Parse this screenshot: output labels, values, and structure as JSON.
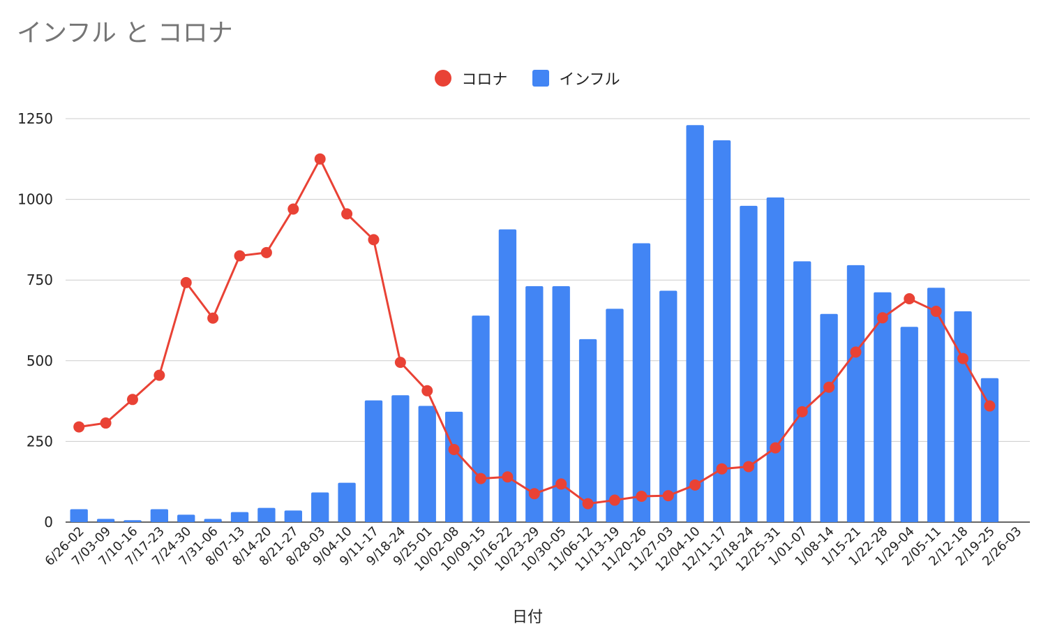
{
  "chart_data": {
    "type": "bar+line",
    "title": "インフル と コロナ",
    "xlabel": "日付",
    "ylabel": "",
    "ylim": [
      0,
      1250
    ],
    "yticks": [
      0,
      250,
      500,
      750,
      1000,
      1250
    ],
    "grid": true,
    "legend_position": "top-center",
    "categories": [
      "6/26-02",
      "7/03-09",
      "7/10-16",
      "7/17-23",
      "7/24-30",
      "7/31-06",
      "8/07-13",
      "8/14-20",
      "8/21-27",
      "8/28-03",
      "9/04-10",
      "9/11-17",
      "9/18-24",
      "9/25-01",
      "10/02-08",
      "10/09-15",
      "10/16-22",
      "10/23-29",
      "10/30-05",
      "11/06-12",
      "11/13-19",
      "11/20-26",
      "11/27-03",
      "12/04-10",
      "12/11-17",
      "12/18-24",
      "12/25-31",
      "1/01-07",
      "1/08-14",
      "1/15-21",
      "1/22-28",
      "1/29-04",
      "2/05-11",
      "2/12-18",
      "2/19-25",
      "2/26-03"
    ],
    "series": [
      {
        "name": "コロナ",
        "kind": "line",
        "color": "#e94235",
        "values": [
          295,
          307,
          380,
          455,
          742,
          632,
          825,
          835,
          970,
          1125,
          955,
          875,
          495,
          407,
          225,
          135,
          140,
          88,
          118,
          57,
          68,
          80,
          82,
          115,
          165,
          172,
          230,
          342,
          418,
          527,
          633,
          692,
          653,
          507,
          360,
          null
        ]
      },
      {
        "name": "インフル",
        "kind": "bar",
        "color": "#4285f4",
        "values": [
          40,
          10,
          6,
          40,
          23,
          10,
          31,
          44,
          36,
          92,
          122,
          377,
          393,
          360,
          342,
          640,
          907,
          731,
          731,
          567,
          661,
          864,
          717,
          1230,
          1183,
          980,
          1006,
          808,
          645,
          796,
          712,
          605,
          726,
          653,
          446,
          null
        ]
      }
    ]
  }
}
